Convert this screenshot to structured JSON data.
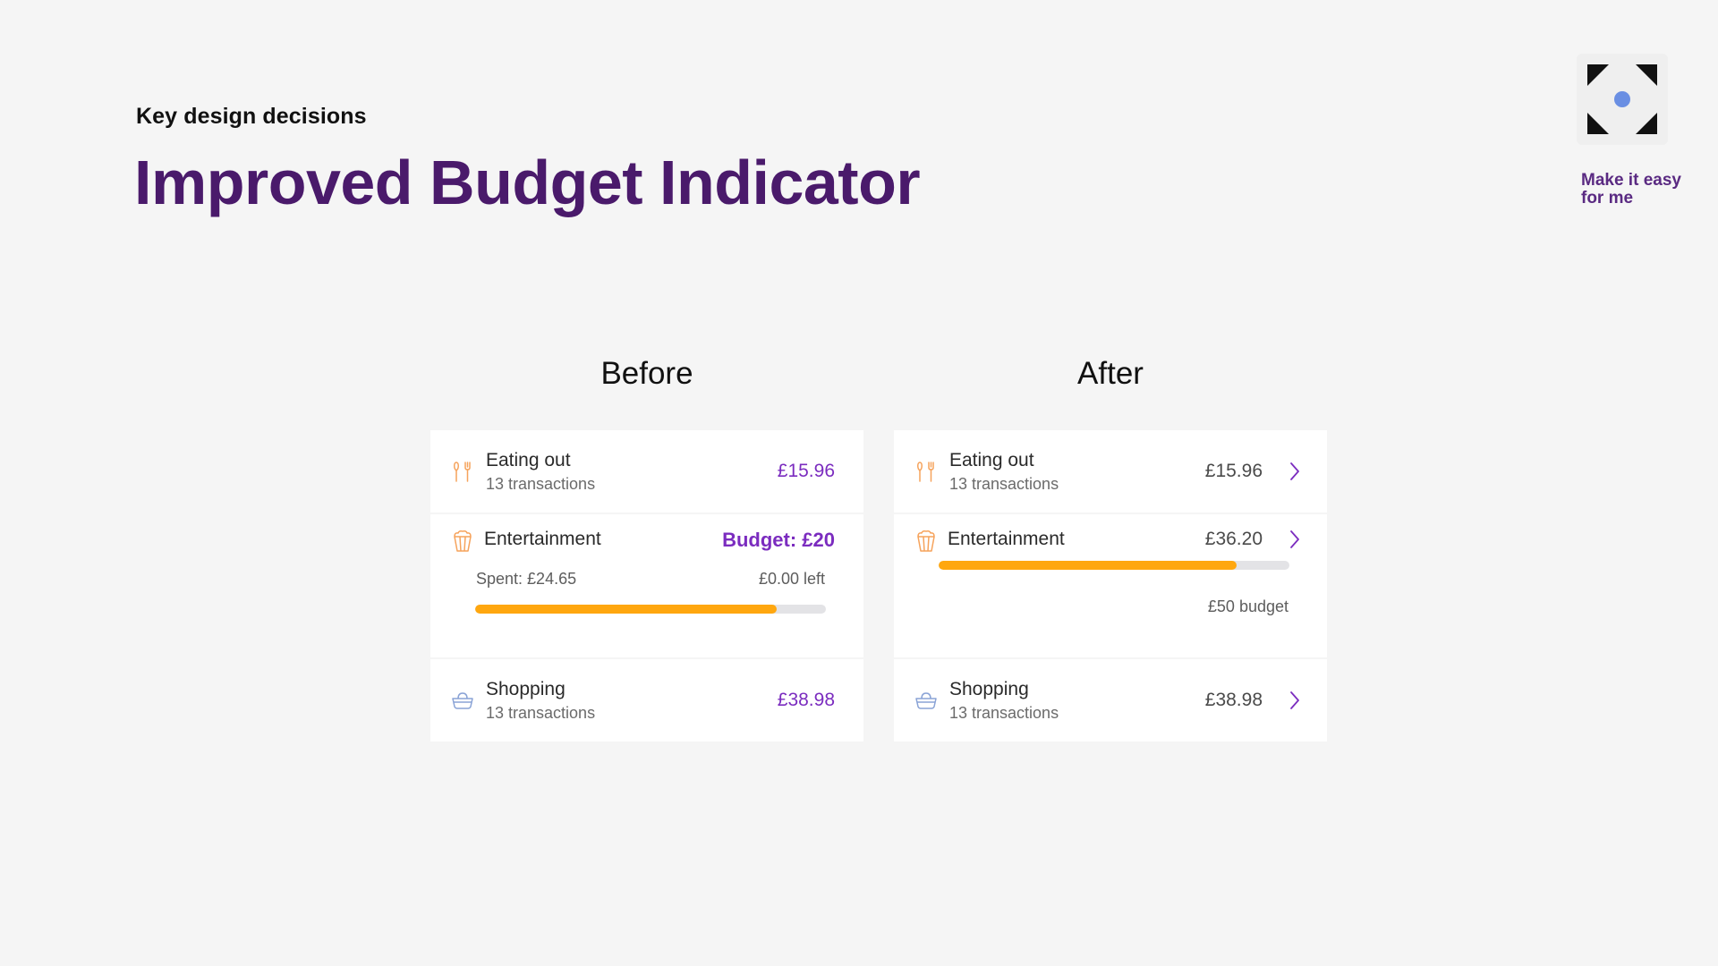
{
  "header": {
    "eyebrow": "Key design decisions",
    "title": "Improved Budget Indicator"
  },
  "brand": {
    "logo_icon": "frame-dot-icon",
    "tagline_line1": "Make it easy",
    "tagline_line2": "for me"
  },
  "colors": {
    "title": "#4a1a6b",
    "accent_purple": "#7b2cbf",
    "progress_fill": "#ffa70f",
    "progress_track": "#e3e3e6",
    "logo_dot": "#6a8fe3"
  },
  "before": {
    "heading": "Before",
    "rows": [
      {
        "icon": "cutlery-icon",
        "label": "Eating out",
        "sub": "13 transactions",
        "amount": "£15.96"
      },
      {
        "icon": "popcorn-icon",
        "label": "Entertainment",
        "amount": "Budget: £20",
        "spent": "Spent: £24.65",
        "left": "£0.00 left",
        "progress": 0.86
      },
      {
        "icon": "basket-icon",
        "label": "Shopping",
        "sub": "13 transactions",
        "amount": "£38.98"
      }
    ]
  },
  "after": {
    "heading": "After",
    "rows": [
      {
        "icon": "cutlery-icon",
        "label": "Eating out",
        "sub": "13 transactions",
        "amount": "£15.96",
        "chevron": "chevron-right-icon"
      },
      {
        "icon": "popcorn-icon",
        "label": "Entertainment",
        "amount": "£36.20",
        "budget_note": "£50 budget",
        "progress": 0.85,
        "chevron": "chevron-right-icon"
      },
      {
        "icon": "basket-icon",
        "label": "Shopping",
        "sub": "13 transactions",
        "amount": "£38.98",
        "chevron": "chevron-right-icon"
      }
    ]
  }
}
